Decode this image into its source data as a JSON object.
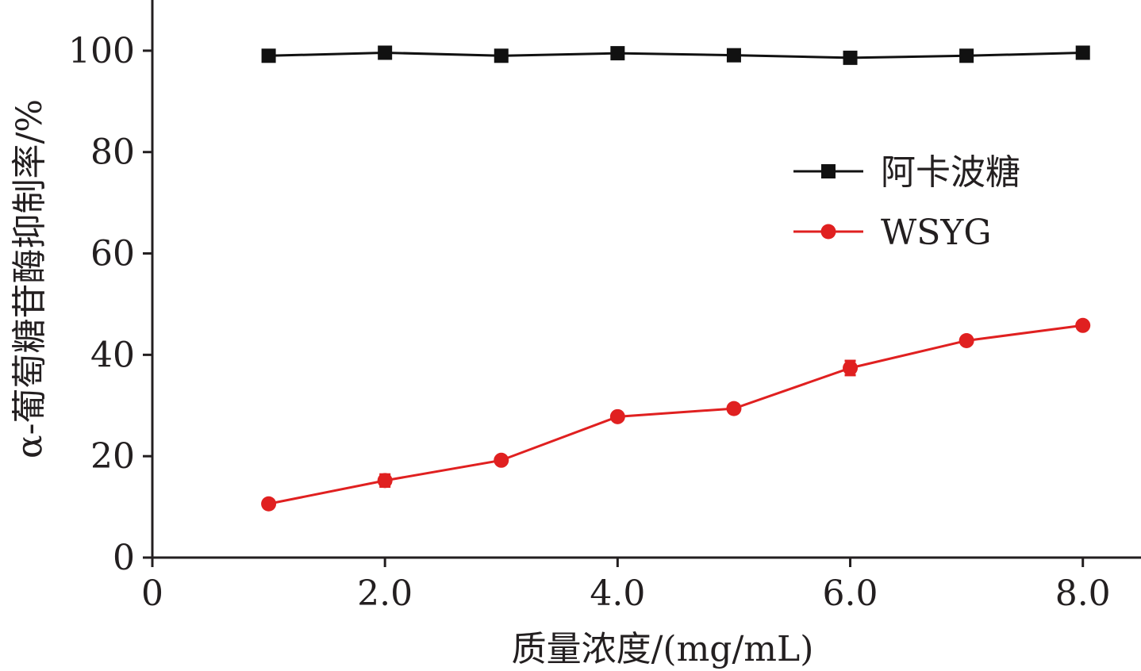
{
  "chart_data": {
    "type": "line",
    "xlabel": "质量浓度/(mg/mL)",
    "ylabel": "α-葡萄糖苷酶抑制率/%",
    "xlim": [
      0,
      8.5
    ],
    "ylim": [
      0,
      110
    ],
    "x_ticks": [
      {
        "value": 0,
        "label": "0"
      },
      {
        "value": 2,
        "label": "2.0"
      },
      {
        "value": 4,
        "label": "4.0"
      },
      {
        "value": 6,
        "label": "6.0"
      },
      {
        "value": 8,
        "label": "8.0"
      }
    ],
    "y_ticks": [
      {
        "value": 0,
        "label": "0"
      },
      {
        "value": 20,
        "label": "20"
      },
      {
        "value": 40,
        "label": "40"
      },
      {
        "value": 60,
        "label": "60"
      },
      {
        "value": 80,
        "label": "80"
      },
      {
        "value": 100,
        "label": "100"
      }
    ],
    "x": [
      1,
      2,
      3,
      4,
      5,
      6,
      7,
      8
    ],
    "series": [
      {
        "name": "阿卡波糖",
        "color": "#111111",
        "marker": "square",
        "values": [
          99.0,
          99.6,
          99.0,
          99.5,
          99.1,
          98.6,
          99.0,
          99.6
        ],
        "errors": [
          0.3,
          0.3,
          0.3,
          0.3,
          0.3,
          0.3,
          0.3,
          0.3
        ]
      },
      {
        "name": "WSYG",
        "color": "#e02020",
        "marker": "circle",
        "values": [
          10.6,
          15.2,
          19.2,
          27.8,
          29.4,
          37.4,
          42.8,
          45.8
        ],
        "errors": [
          0.4,
          1.2,
          0.5,
          0.6,
          0.5,
          1.4,
          0.5,
          0.5
        ]
      }
    ],
    "legend_position": "top-right",
    "grid": false
  }
}
